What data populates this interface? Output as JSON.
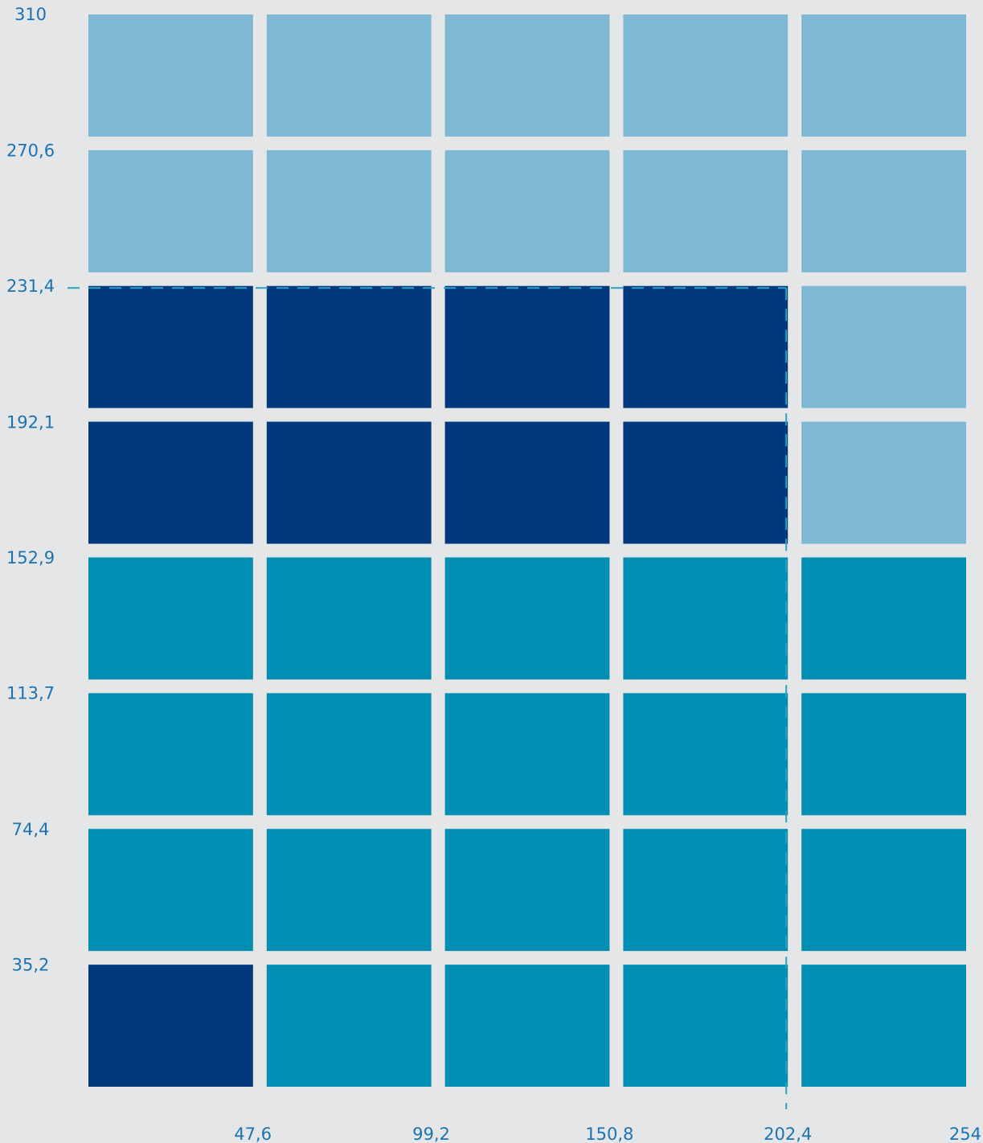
{
  "colors": {
    "background": "#e5e6e8",
    "light": "#7fb8d3",
    "dark": "#013a7c",
    "teal": "#008eb2",
    "guide": "#2aa2c4",
    "tick_text": "#1b73b5"
  },
  "chart_data": {
    "type": "heatmap",
    "title": "",
    "xlabel": "",
    "ylabel": "",
    "x_ticks": [
      "47,6",
      "99,2",
      "150,8",
      "202,4",
      "254"
    ],
    "y_ticks": [
      "35,2",
      "74,4",
      "113,7",
      "152,9",
      "192,1",
      "231,4",
      "270,6",
      "310"
    ],
    "x_range": [
      0,
      254
    ],
    "y_range": [
      0,
      310
    ],
    "grid": false,
    "guide_lines": {
      "x": 202.4,
      "y": 231.4,
      "style": "dashed"
    },
    "legend": "none",
    "cells": [
      [
        "light",
        "light",
        "light",
        "light",
        "light"
      ],
      [
        "light",
        "light",
        "light",
        "light",
        "light"
      ],
      [
        "dark",
        "dark",
        "dark",
        "dark",
        "light"
      ],
      [
        "dark",
        "dark",
        "dark",
        "dark",
        "light"
      ],
      [
        "teal",
        "teal",
        "teal",
        "teal",
        "teal"
      ],
      [
        "teal",
        "teal",
        "teal",
        "teal",
        "teal"
      ],
      [
        "teal",
        "teal",
        "teal",
        "teal",
        "teal"
      ],
      [
        "dark",
        "teal",
        "teal",
        "teal",
        "teal"
      ]
    ]
  }
}
